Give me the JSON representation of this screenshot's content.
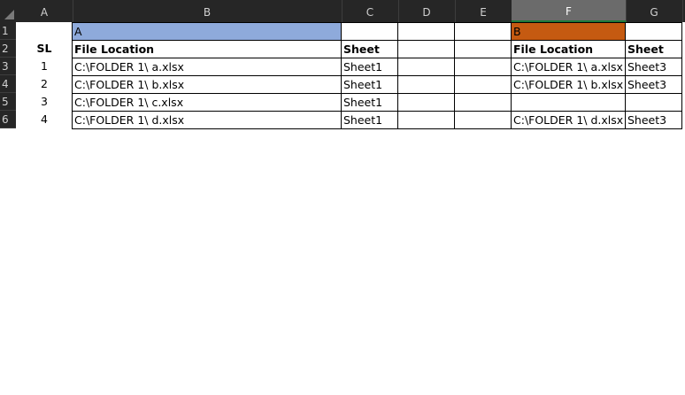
{
  "columns": [
    "A",
    "B",
    "C",
    "D",
    "E",
    "F",
    "G"
  ],
  "selected_column": "F",
  "rows": [
    "1",
    "2",
    "3",
    "4",
    "5",
    "6"
  ],
  "colors": {
    "header_a": "#8eaadb",
    "header_b": "#c55a11",
    "header_bg": "#262626"
  },
  "cells": {
    "B1": "A",
    "F1": "B",
    "A2": "SL",
    "B2": "File Location",
    "C2": "Sheet",
    "F2": "File Location",
    "G2": "Sheet",
    "A3": "1",
    "B3": "C:\\FOLDER 1\\ a.xlsx",
    "C3": "Sheet1",
    "F3": "C:\\FOLDER 1\\ a.xlsx",
    "G3": "Sheet3",
    "A4": "2",
    "B4": "C:\\FOLDER 1\\ b.xlsx",
    "C4": "Sheet1",
    "F4": "C:\\FOLDER 1\\ b.xlsx",
    "G4": "Sheet3",
    "A5": "3",
    "B5": "C:\\FOLDER 1\\ c.xlsx",
    "C5": "Sheet1",
    "A6": "4",
    "B6": "C:\\FOLDER 1\\ d.xlsx",
    "C6": "Sheet1",
    "F6": "C:\\FOLDER 1\\ d.xlsx",
    "G6": "Sheet3"
  }
}
